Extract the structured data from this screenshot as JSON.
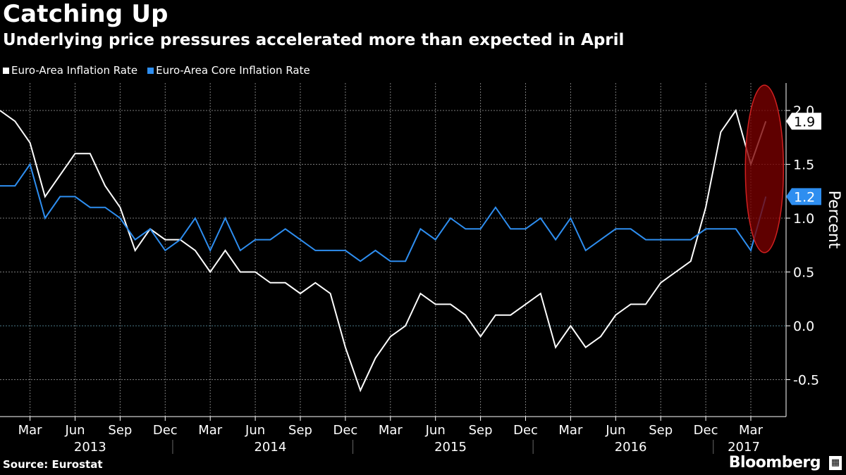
{
  "header": {
    "title": "Catching Up",
    "subtitle": "Underlying price pressures accelerated more than expected in April"
  },
  "footer": {
    "source": "Source: Eurostat",
    "brand": "Bloomberg",
    "brand_icon": "bloomberg-logo-icon"
  },
  "colors": {
    "background": "#000000",
    "headline": "#ffffff",
    "core": "#2e8ef0",
    "grid": "#7a7a7a",
    "zero_line": "#4a7a8a",
    "highlight": "#7a0000"
  },
  "chart_data": {
    "type": "line",
    "title": "Catching Up",
    "ylabel": "Percent",
    "ylim": [
      -0.8,
      2.2
    ],
    "yticks": [
      -0.5,
      0.0,
      0.5,
      1.0,
      1.5,
      2.0
    ],
    "ytick_labels": [
      "-0.5",
      "0.0",
      "0.5",
      "1.0",
      "1.5",
      "2.0"
    ],
    "x_start": "Jan 2013",
    "x_month_labels": [
      "Mar",
      "Jun",
      "Sep",
      "Dec",
      "Mar",
      "Jun",
      "Sep",
      "Dec",
      "Mar",
      "Jun",
      "Sep",
      "Dec",
      "Mar",
      "Jun",
      "Sep",
      "Dec",
      "Mar"
    ],
    "x_year_labels": [
      "2013",
      "2014",
      "2015",
      "2016",
      "2017"
    ],
    "series": [
      {
        "name": "Euro-Area Inflation Rate",
        "color": "#ffffff",
        "last_value_label": "1.9",
        "values": [
          2.0,
          1.9,
          1.7,
          1.2,
          1.4,
          1.6,
          1.6,
          1.3,
          1.1,
          0.7,
          0.9,
          0.8,
          0.8,
          0.7,
          0.5,
          0.7,
          0.5,
          0.5,
          0.4,
          0.4,
          0.3,
          0.4,
          0.3,
          -0.2,
          -0.6,
          -0.3,
          -0.1,
          0.0,
          0.3,
          0.2,
          0.2,
          0.1,
          -0.1,
          0.1,
          0.1,
          0.2,
          0.3,
          -0.2,
          0.0,
          -0.2,
          -0.1,
          0.1,
          0.2,
          0.2,
          0.4,
          0.5,
          0.6,
          1.1,
          1.8,
          2.0,
          1.5,
          1.9
        ]
      },
      {
        "name": "Euro-Area Core Inflation Rate",
        "color": "#2e8ef0",
        "last_value_label": "1.2",
        "values": [
          1.3,
          1.3,
          1.5,
          1.0,
          1.2,
          1.2,
          1.1,
          1.1,
          1.0,
          0.8,
          0.9,
          0.7,
          0.8,
          1.0,
          0.7,
          1.0,
          0.7,
          0.8,
          0.8,
          0.9,
          0.8,
          0.7,
          0.7,
          0.7,
          0.6,
          0.7,
          0.6,
          0.6,
          0.9,
          0.8,
          1.0,
          0.9,
          0.9,
          1.1,
          0.9,
          0.9,
          1.0,
          0.8,
          1.0,
          0.7,
          0.8,
          0.9,
          0.9,
          0.8,
          0.8,
          0.8,
          0.8,
          0.9,
          0.9,
          0.9,
          0.7,
          1.2
        ]
      }
    ],
    "annotation": "highlight ellipse around April 2017 values"
  }
}
